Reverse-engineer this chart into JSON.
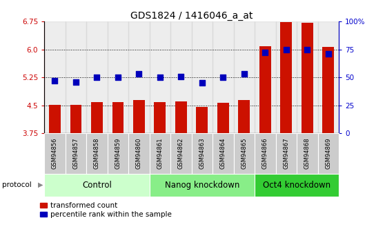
{
  "title": "GDS1824 / 1416046_a_at",
  "samples": [
    "GSM94856",
    "GSM94857",
    "GSM94858",
    "GSM94859",
    "GSM94860",
    "GSM94861",
    "GSM94862",
    "GSM94863",
    "GSM94864",
    "GSM94865",
    "GSM94866",
    "GSM94867",
    "GSM94868",
    "GSM94869"
  ],
  "red_values": [
    4.52,
    4.51,
    4.58,
    4.59,
    4.65,
    4.58,
    4.61,
    4.46,
    4.56,
    4.65,
    6.08,
    6.73,
    6.72,
    6.06
  ],
  "blue_values": [
    47,
    46,
    50,
    50,
    53,
    50,
    51,
    45,
    50,
    53,
    72,
    75,
    75,
    71
  ],
  "ylim_left": [
    3.75,
    6.75
  ],
  "ylim_right": [
    0,
    100
  ],
  "yticks_left": [
    3.75,
    4.5,
    5.25,
    6.0,
    6.75
  ],
  "yticks_right": [
    0,
    25,
    50,
    75,
    100
  ],
  "ytick_labels_right": [
    "0",
    "25",
    "50",
    "75",
    "100%"
  ],
  "groups": [
    {
      "label": "Control",
      "start": 0,
      "end": 5,
      "color": "#ccffcc"
    },
    {
      "label": "Nanog knockdown",
      "start": 5,
      "end": 10,
      "color": "#88ee88"
    },
    {
      "label": "Oct4 knockdown",
      "start": 10,
      "end": 14,
      "color": "#33cc33"
    }
  ],
  "bar_color": "#cc1100",
  "dot_color": "#0000bb",
  "bar_width": 0.55,
  "dot_size": 30,
  "protocol_label": "protocol",
  "legend_red": "transformed count",
  "legend_blue": "percentile rank within the sample",
  "title_fontsize": 10,
  "tick_fontsize": 7.5,
  "xtick_fontsize": 6.0,
  "label_fontsize": 7.5,
  "group_label_fontsize": 8.5,
  "cell_color": "#cccccc"
}
